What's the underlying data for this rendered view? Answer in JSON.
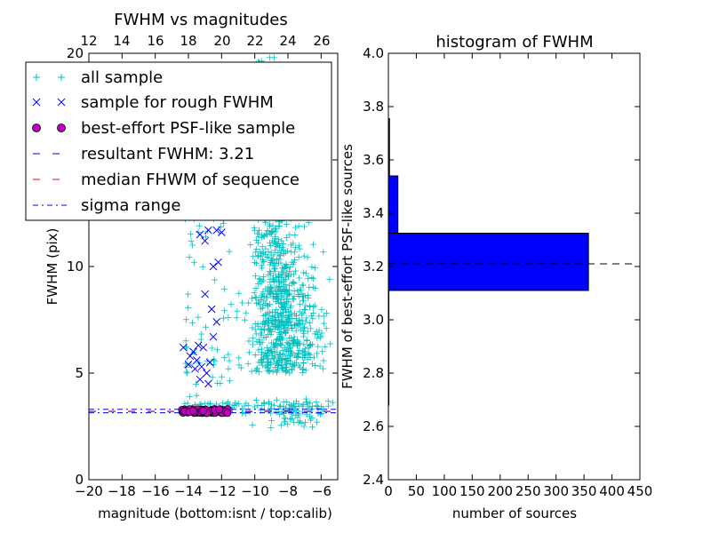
{
  "chart_data": [
    {
      "type": "scatter",
      "title": "FWHM vs magnitudes",
      "xlabel": "magnitude (bottom:isnt / top:calib)",
      "ylabel": "FWHM (pix)",
      "xlim": [
        -20,
        -5
      ],
      "ylim": [
        0,
        20
      ],
      "x_ticks": [
        "−20",
        "−18",
        "−16",
        "−14",
        "−12",
        "−10",
        "−8",
        "−6"
      ],
      "y_ticks": [
        "0",
        "5",
        "10",
        "15",
        "20"
      ],
      "top_ticks": [
        "12",
        "14",
        "16",
        "18",
        "20",
        "22",
        "24",
        "26"
      ],
      "top_axis_offset": 32,
      "legend": {
        "placement": "upper-left",
        "entries": [
          {
            "label": "all sample",
            "marker": "plus",
            "color": "#00bfbf"
          },
          {
            "label": "sample for rough FWHM",
            "marker": "x",
            "color": "#0000ff"
          },
          {
            "label": "best-effort PSF-like sample",
            "marker": "circle",
            "color": "#bf00bf"
          },
          {
            "label": "resultant FWHM: 3.21",
            "marker": "dashed-line",
            "color": "#0000ff"
          },
          {
            "label": "median FHWM of sequence",
            "marker": "dashed-line",
            "color": "#ff0000"
          },
          {
            "label": "sigma range",
            "marker": "dashdot-line",
            "color": "#0000ff"
          }
        ]
      },
      "series": [
        {
          "name": "sample for rough FWHM",
          "marker": "x",
          "color": "#0000ff",
          "points": [
            [
              -13.3,
              11.5
            ],
            [
              -13.0,
              11.2
            ],
            [
              -12.8,
              11.7
            ],
            [
              -12.3,
              11.7
            ],
            [
              -12.0,
              11.6
            ],
            [
              -12.2,
              10.2
            ],
            [
              -12.5,
              10.0
            ],
            [
              -13.0,
              8.7
            ],
            [
              -12.6,
              8.0
            ],
            [
              -12.3,
              7.4
            ],
            [
              -12.5,
              6.7
            ],
            [
              -13.4,
              6.3
            ],
            [
              -14.3,
              6.2
            ],
            [
              -13.7,
              6.0
            ],
            [
              -13.1,
              6.2
            ],
            [
              -13.9,
              5.8
            ],
            [
              -13.5,
              5.6
            ],
            [
              -14.0,
              5.4
            ],
            [
              -13.2,
              5.3
            ],
            [
              -12.7,
              5.5
            ],
            [
              -13.6,
              5.2
            ],
            [
              -12.9,
              5.0
            ],
            [
              -13.3,
              4.7
            ],
            [
              -12.8,
              4.5
            ]
          ]
        }
      ],
      "hlines": [
        {
          "name": "resultant FWHM: 3.21",
          "y": 3.21,
          "color": "#0000ff",
          "style": "dashed"
        },
        {
          "name": "median FHWM of sequence",
          "y": 3.2,
          "color": "#ff0000",
          "style": "dashed"
        },
        {
          "name": "sigma range",
          "y": 3.14,
          "color": "#0000ff",
          "style": "dashdot"
        },
        {
          "name": "sigma range",
          "y": 3.3,
          "color": "#0000ff",
          "style": "dashdot"
        }
      ]
    },
    {
      "type": "bar",
      "orientation": "horizontal",
      "title": "histogram of FWHM",
      "xlabel": "number of sources",
      "ylabel": "FWHM of best-effort PSF-like sources",
      "xlim": [
        0,
        450
      ],
      "ylim": [
        2.4,
        4.0
      ],
      "x_ticks": [
        "0",
        "50",
        "100",
        "150",
        "200",
        "250",
        "300",
        "350",
        "400",
        "450"
      ],
      "y_ticks": [
        "2.4",
        "2.6",
        "2.8",
        "3.0",
        "3.2",
        "3.4",
        "3.6",
        "3.8",
        "4.0"
      ],
      "bar_color": "#0000ff",
      "bins": [
        {
          "from": 2.68,
          "to": 2.895,
          "count": 0
        },
        {
          "from": 2.895,
          "to": 3.11,
          "count": 0
        },
        {
          "from": 3.11,
          "to": 3.325,
          "count": 358
        },
        {
          "from": 3.325,
          "to": 3.54,
          "count": 17
        },
        {
          "from": 3.54,
          "to": 3.755,
          "count": 2
        }
      ],
      "hline": {
        "y": 3.21,
        "style": "dashed",
        "color": "#000000"
      }
    }
  ]
}
